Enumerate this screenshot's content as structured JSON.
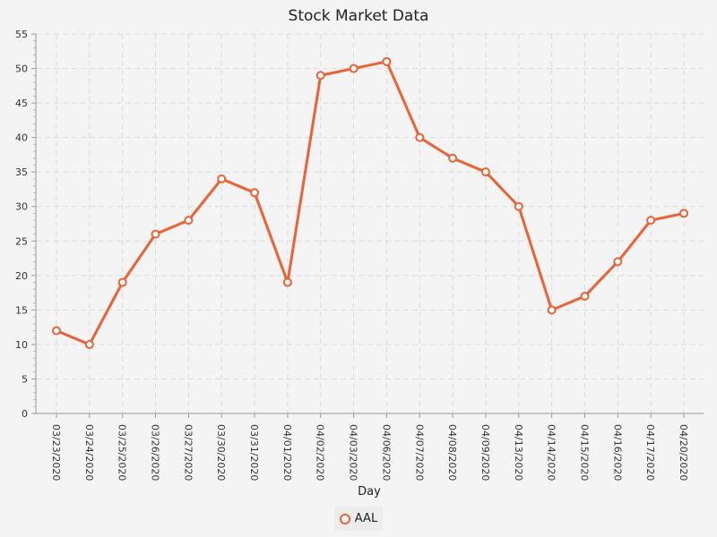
{
  "chart_data": {
    "type": "line",
    "title": "Stock Market Data",
    "xlabel": "Day",
    "ylabel": "",
    "ylim": [
      0,
      55
    ],
    "yticks": [
      0,
      5,
      10,
      15,
      20,
      25,
      30,
      35,
      40,
      45,
      50,
      55
    ],
    "grid": true,
    "legend_position": "bottom",
    "categories": [
      "03/23/2020",
      "03/24/2020",
      "03/25/2020",
      "03/26/2020",
      "03/27/2020",
      "03/30/2020",
      "03/31/2020",
      "04/01/2020",
      "04/02/2020",
      "04/03/2020",
      "04/06/2020",
      "04/07/2020",
      "04/08/2020",
      "04/09/2020",
      "04/13/2020",
      "04/14/2020",
      "04/15/2020",
      "04/16/2020",
      "04/17/2020",
      "04/20/2020"
    ],
    "series": [
      {
        "name": "AAL",
        "color": "#ec6235",
        "values": [
          12,
          10,
          19,
          26,
          28,
          34,
          32,
          19,
          49,
          50,
          51,
          40,
          37,
          35,
          30,
          15,
          17,
          22,
          28,
          29
        ]
      }
    ]
  }
}
